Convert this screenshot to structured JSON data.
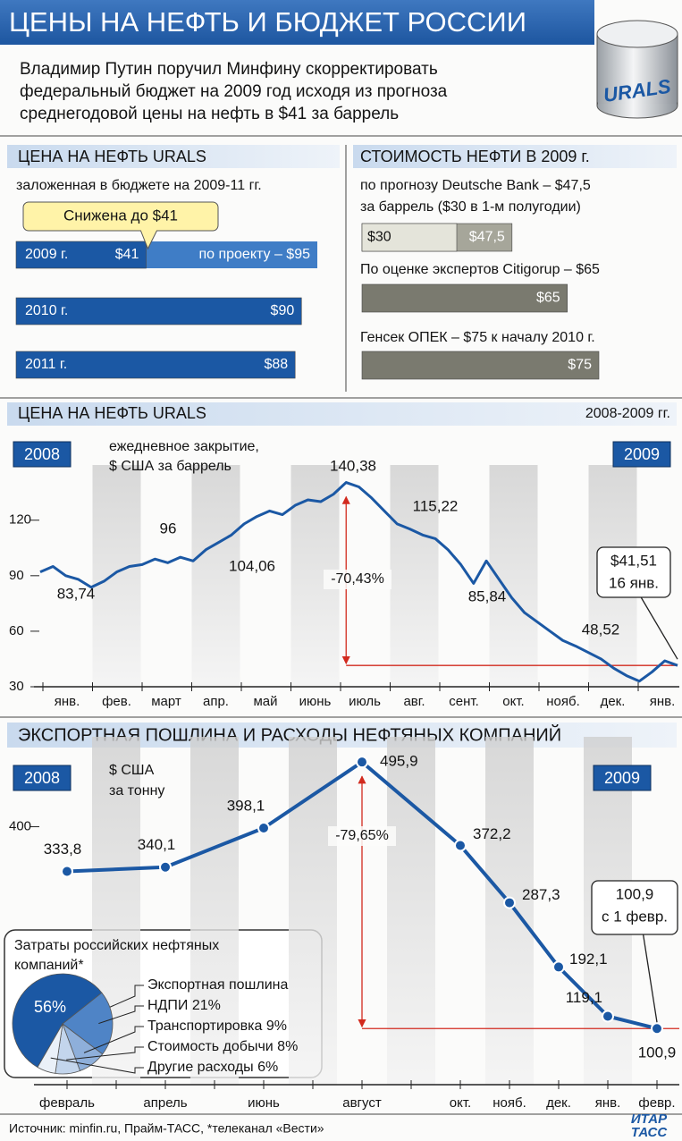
{
  "header": {
    "title": "ЦЕНЫ НА НЕФТЬ И БЮДЖЕТ РОССИИ",
    "lead": [
      "Владимир Путин поручил Минфину скорректировать",
      "федеральный бюджет на 2009 год исходя из прогноза",
      "среднегодовой цены на нефть в $41 за баррель"
    ],
    "barrel_label": "URALS"
  },
  "chart_data": [
    {
      "type": "bar",
      "title": "ЦЕНА НА НЕФТЬ URALS",
      "subtitle": "заложенная в бюджете на 2009-11 гг.",
      "categories": [
        "2009 г.",
        "2010 г.",
        "2011 г."
      ],
      "values": [
        41,
        90,
        88
      ],
      "value_labels": [
        "$41",
        "$90",
        "$88"
      ],
      "color": "#1b58a4",
      "callout": "Снижена до $41",
      "project": {
        "value": 95,
        "label": "по проекту – $95",
        "color": "#3f7dc6"
      }
    },
    {
      "type": "bar",
      "title": "СТОИМОСТЬ НЕФТИ В 2009 г.",
      "categories": [
        [
          "по прогнозу Deutsche Bank – $47,5",
          "за баррель  ($30 в 1-м полугодии)"
        ],
        [
          "По оценке экспертов Citigorup – $65"
        ],
        [
          "Генсек ОПЕК – $75 к началу 2010 г."
        ]
      ],
      "values": [
        47.5,
        65,
        75
      ],
      "value_labels": [
        "$47,5",
        "$65",
        "$75"
      ],
      "color": "#7a7a6f",
      "first_half": {
        "value": 30,
        "label": "$30",
        "color": "#e4e4da"
      }
    },
    {
      "type": "line",
      "title": "ЦЕНА НА НЕФТЬ URALS",
      "period": "2008-2009 гг.",
      "years": [
        "2008",
        "2009"
      ],
      "unit": [
        "ежедневное закрытие,",
        "$ США за баррель"
      ],
      "months": [
        "янв.",
        "фев.",
        "март",
        "апр.",
        "май",
        "июнь",
        "июль",
        "авг.",
        "сент.",
        "окт.",
        "нояб.",
        "дек.",
        "янв."
      ],
      "values": [
        92,
        95,
        90,
        88,
        83.74,
        87,
        92,
        95,
        96,
        99,
        97,
        100,
        98,
        104.06,
        108,
        112,
        118,
        122,
        125,
        123,
        128,
        131,
        130,
        134,
        140.38,
        138,
        132,
        125,
        118,
        115.22,
        112,
        110,
        104,
        96,
        85.84,
        98,
        88,
        78,
        70,
        65,
        60,
        55,
        52,
        48.52,
        45,
        40,
        36,
        33,
        38,
        44,
        41.51
      ],
      "color": "#1b58a4",
      "ylim": [
        30,
        145
      ],
      "yticks": [
        30,
        60,
        90,
        120
      ],
      "annotations": [
        "140,38",
        "115,22",
        "96",
        "104,06",
        "83,74",
        "85,84",
        "48,52"
      ],
      "change": "-70,43%",
      "callout": [
        "$41,51",
        "16 янв."
      ]
    },
    {
      "type": "line",
      "title": "ЭКСПОРТНАЯ ПОШЛИНА И РАСХОДЫ НЕФТЯНЫХ КОМПАНИЙ",
      "years": [
        "2008",
        "2009"
      ],
      "unit": [
        "$ США",
        "за тонну"
      ],
      "categories": [
        "февраль",
        "апрель",
        "июнь",
        "август",
        "окт.",
        "нояб.",
        "дек.",
        "янв.",
        "февр."
      ],
      "values": [
        333.8,
        340.1,
        398.1,
        495.9,
        372.2,
        287.3,
        192.1,
        119.1,
        100.9
      ],
      "value_labels": [
        "333,8",
        "340,1",
        "398,1",
        "495,9",
        "372,2",
        "287,3",
        "192,1",
        "119,1",
        "100,9"
      ],
      "color": "#1b58a4",
      "ylim": [
        80,
        520
      ],
      "yticks": [
        400
      ],
      "change": "-79,65%",
      "callout": [
        "100,9",
        "с 1 февр."
      ]
    },
    {
      "type": "pie",
      "title": [
        "Затраты российских нефтяных",
        "компаний*"
      ],
      "categories": [
        "Экспортная пошлина",
        "НДПИ 21%",
        "Транспортировка 9%",
        "Стоимость добычи 8%",
        "Другие расходы 6%"
      ],
      "values": [
        56,
        21,
        9,
        8,
        6
      ],
      "value_labels": [
        "56%",
        null,
        null,
        null,
        null
      ],
      "colors": [
        "#1b58a4",
        "#4f84c6",
        "#8eafda",
        "#c3d5ec",
        "#eaf0f8"
      ]
    }
  ],
  "footer": {
    "source": "Источник: minfin.ru, Прайм-ТАСС, *телеканал «Вести»",
    "logo": [
      "ИТАР",
      "ТАСС"
    ]
  }
}
